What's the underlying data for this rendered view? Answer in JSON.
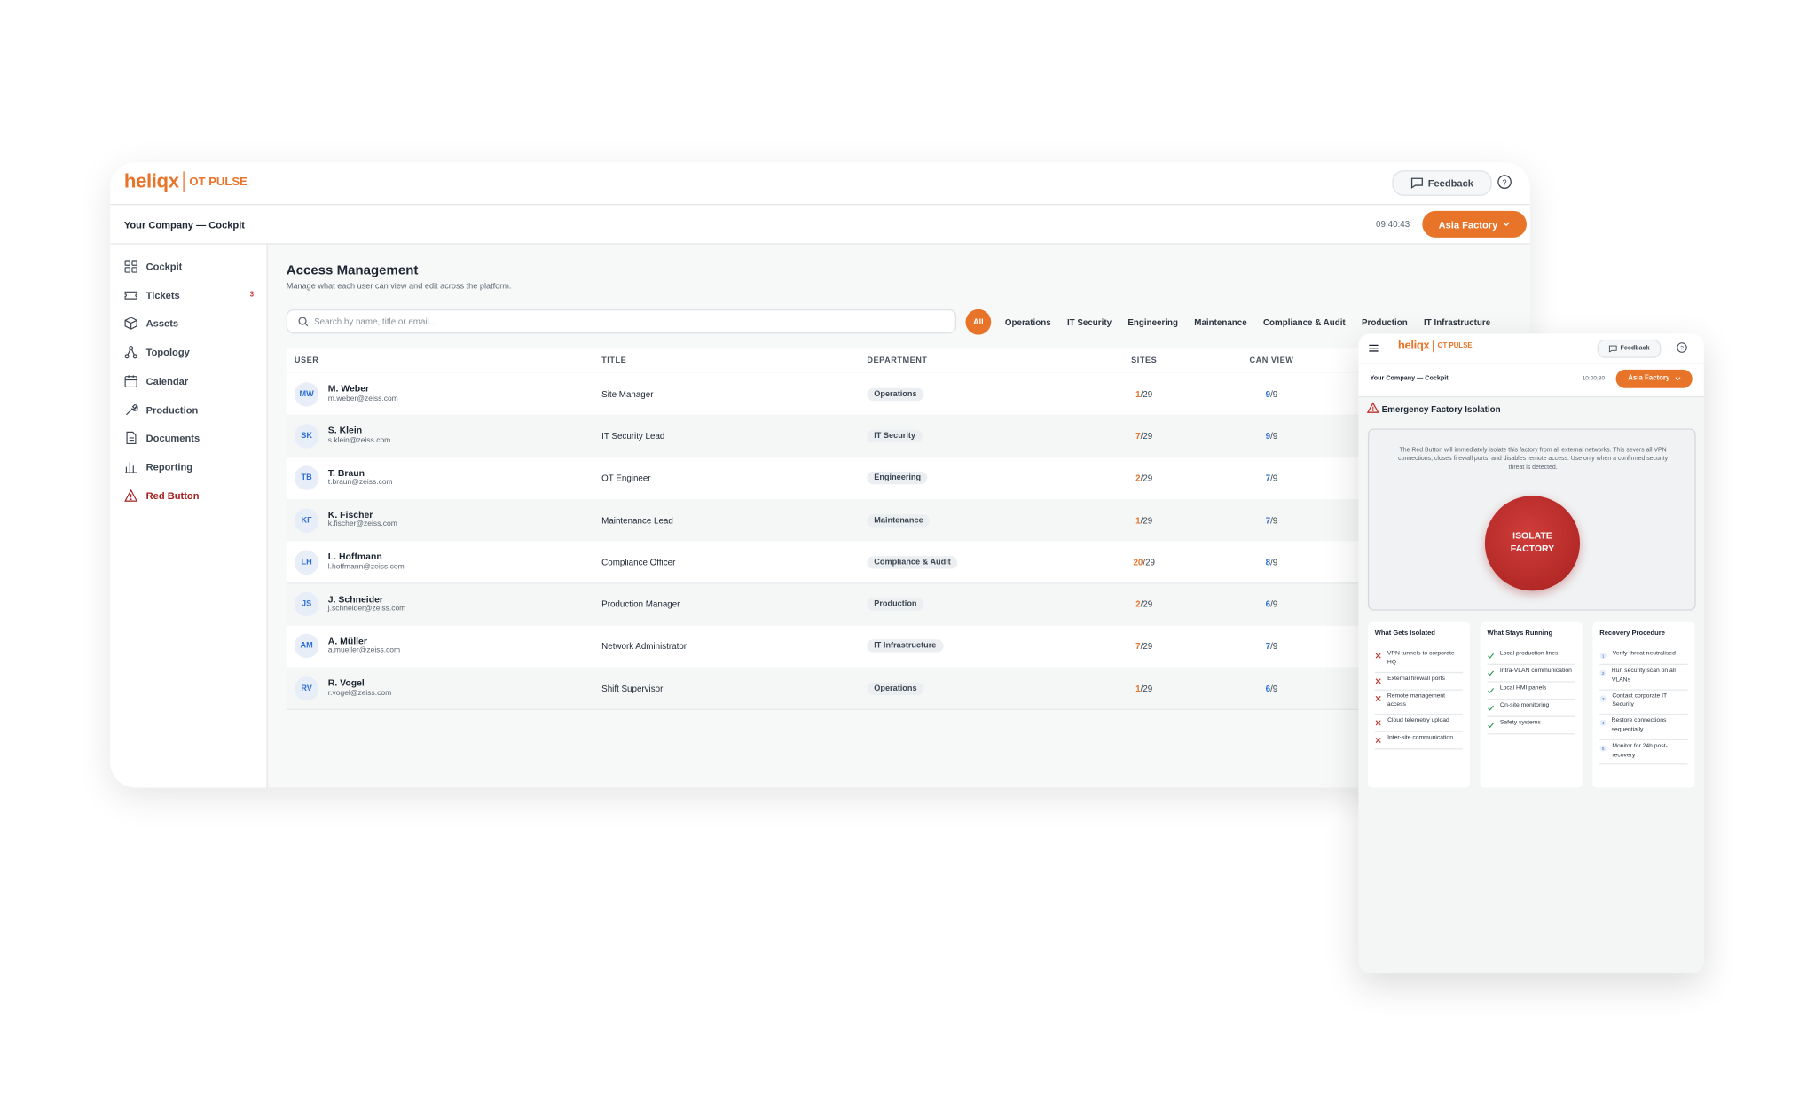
{
  "main": {
    "logo": {
      "brand": "heliqx",
      "product": "OT PULSE"
    },
    "feedback": "Feedback",
    "breadcrumb": "Your Company — Cockpit",
    "time": "09:40:43",
    "site": "Asia Factory",
    "nav": [
      {
        "label": "Cockpit"
      },
      {
        "label": "Tickets",
        "badge": "3"
      },
      {
        "label": "Assets"
      },
      {
        "label": "Topology"
      },
      {
        "label": "Calendar"
      },
      {
        "label": "Production"
      },
      {
        "label": "Documents"
      },
      {
        "label": "Reporting"
      },
      {
        "label": "Red Button"
      }
    ],
    "page": {
      "title": "Access Management",
      "subtitle": "Manage what each user can view and edit across the platform.",
      "search_placeholder": "Search by name, title or email...",
      "filters": [
        "All",
        "Operations",
        "IT Security",
        "Engineering",
        "Maintenance",
        "Compliance & Audit",
        "Production",
        "IT Infrastructure"
      ]
    },
    "table": {
      "columns": [
        "USER",
        "TITLE",
        "DEPARTMENT",
        "SITES",
        "CAN VIEW"
      ],
      "rows": [
        {
          "initials": "MW",
          "name": "M. Weber",
          "email": "m.weber@zeiss.com",
          "title": "Site Manager",
          "department": "Operations",
          "sites": "1",
          "sites_total": "/29",
          "can_view": "9",
          "can_view_total": "/9"
        },
        {
          "initials": "SK",
          "name": "S. Klein",
          "email": "s.klein@zeiss.com",
          "title": "IT Security Lead",
          "department": "IT Security",
          "sites": "7",
          "sites_total": "/29",
          "can_view": "9",
          "can_view_total": "/9"
        },
        {
          "initials": "TB",
          "name": "T. Braun",
          "email": "t.braun@zeiss.com",
          "title": "OT Engineer",
          "department": "Engineering",
          "sites": "2",
          "sites_total": "/29",
          "can_view": "7",
          "can_view_total": "/9"
        },
        {
          "initials": "KF",
          "name": "K. Fischer",
          "email": "k.fischer@zeiss.com",
          "title": "Maintenance Lead",
          "department": "Maintenance",
          "sites": "1",
          "sites_total": "/29",
          "can_view": "7",
          "can_view_total": "/9"
        },
        {
          "initials": "LH",
          "name": "L. Hoffmann",
          "email": "l.hoffmann@zeiss.com",
          "title": "Compliance Officer",
          "department": "Compliance & Audit",
          "sites": "20",
          "sites_total": "/29",
          "can_view": "8",
          "can_view_total": "/9"
        },
        {
          "initials": "JS",
          "name": "J. Schneider",
          "email": "j.schneider@zeiss.com",
          "title": "Production Manager",
          "department": "Production",
          "sites": "2",
          "sites_total": "/29",
          "can_view": "6",
          "can_view_total": "/9"
        },
        {
          "initials": "AM",
          "name": "A. Müller",
          "email": "a.mueller@zeiss.com",
          "title": "Network Administrator",
          "department": "IT Infrastructure",
          "sites": "7",
          "sites_total": "/29",
          "can_view": "7",
          "can_view_total": "/9"
        },
        {
          "initials": "RV",
          "name": "R. Vogel",
          "email": "r.vogel@zeiss.com",
          "title": "Shift Supervisor",
          "department": "Operations",
          "sites": "1",
          "sites_total": "/29",
          "can_view": "6",
          "can_view_total": "/9"
        }
      ]
    }
  },
  "mobile": {
    "logo": {
      "brand": "heliqx",
      "product": "OT PULSE"
    },
    "feedback": "Feedback",
    "breadcrumb": "Your Company — Cockpit",
    "time": "10:00:30",
    "site": "Asia Factory",
    "alert_title": "Emergency Factory Isolation",
    "description": "The Red Button will immediately isolate this factory from all external networks. This severs all VPN connections, closes firewall ports, and disables remote access. Use only when a confirmed security threat is detected.",
    "button": "ISOLATE FACTORY",
    "cards": [
      {
        "title": "What Gets Isolated",
        "kind": "cross",
        "items": [
          "VPN tunnels to corporate HQ",
          "External firewall ports",
          "Remote management access",
          "Cloud telemetry upload",
          "Inter-site communication"
        ]
      },
      {
        "title": "What Stays Running",
        "kind": "check",
        "items": [
          "Local production lines",
          "Intra-VLAN communication",
          "Local HMI panels",
          "On-site monitoring",
          "Safety systems"
        ]
      },
      {
        "title": "Recovery Procedure",
        "kind": "number",
        "items": [
          "Verify threat neutralised",
          "Run security scan on all VLANs",
          "Contact corporate IT Security",
          "Restore connections sequentially",
          "Monitor for 24h post-recovery"
        ]
      }
    ]
  }
}
